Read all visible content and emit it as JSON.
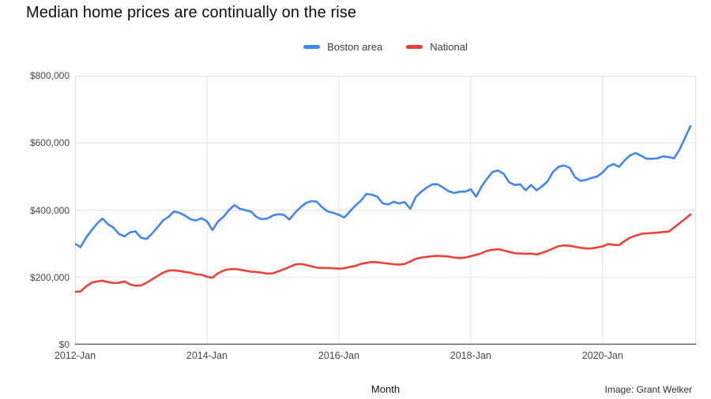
{
  "header": {
    "title": "Median home prices are continually on the rise"
  },
  "legend": {
    "items": [
      {
        "label": "Boston area",
        "color": "#4285f4"
      },
      {
        "label": "National",
        "color": "#ea4335"
      }
    ]
  },
  "footer": {
    "xaxis_title": "Month",
    "credit": "Image: Grant Welker"
  },
  "style": {
    "grid_color": "#e3e3e3",
    "axis_line_color": "#424242",
    "tick_label_color": "#474747",
    "line_width": 2.6,
    "background": "#ffffff"
  },
  "chart_data": {
    "type": "line",
    "title": "Median home prices are continually on the rise",
    "xlabel": "Month",
    "ylabel": "",
    "grid": true,
    "legend_position": "top-center",
    "ylim": [
      0,
      800000
    ],
    "y_ticks": [
      {
        "value": 0,
        "label": "$0"
      },
      {
        "value": 200000,
        "label": "$200,000"
      },
      {
        "value": 400000,
        "label": "$400,000"
      },
      {
        "value": 600000,
        "label": "$600,000"
      },
      {
        "value": 800000,
        "label": "$800,000"
      }
    ],
    "x_unit": "months since 2012-Jan (monthly data, 2012-Jan through 2021-May)",
    "x_domain_months": [
      0,
      113
    ],
    "x_ticks": [
      {
        "month_index": 0,
        "label": "2012-Jan"
      },
      {
        "month_index": 24,
        "label": "2014-Jan"
      },
      {
        "month_index": 48,
        "label": "2016-Jan"
      },
      {
        "month_index": 72,
        "label": "2018-Jan"
      },
      {
        "month_index": 96,
        "label": "2020-Jan"
      }
    ],
    "series": [
      {
        "name": "Boston area",
        "color": "#4285f4",
        "values": [
          300000,
          290000,
          318000,
          340000,
          360000,
          375000,
          358000,
          348000,
          329000,
          322000,
          334000,
          337000,
          318000,
          314000,
          330000,
          349000,
          369000,
          380000,
          396000,
          392000,
          384000,
          373000,
          369000,
          376000,
          367000,
          341000,
          366000,
          380000,
          400000,
          415000,
          404000,
          400000,
          396000,
          380000,
          373000,
          375000,
          384000,
          388000,
          386000,
          372000,
          392000,
          408000,
          421000,
          427000,
          425000,
          408000,
          396000,
          392000,
          386000,
          378000,
          396000,
          413000,
          428000,
          448000,
          446000,
          440000,
          420000,
          417000,
          425000,
          420000,
          424000,
          404000,
          439000,
          455000,
          467000,
          477000,
          477000,
          467000,
          456000,
          451000,
          455000,
          455000,
          462000,
          440000,
          471000,
          494000,
          514000,
          518000,
          508000,
          483000,
          475000,
          477000,
          459000,
          475000,
          459000,
          471000,
          486000,
          514000,
          529000,
          533000,
          526000,
          498000,
          487000,
          490000,
          496000,
          500000,
          512000,
          530000,
          537000,
          529000,
          548000,
          563000,
          570000,
          562000,
          553000,
          553000,
          554000,
          560000,
          558000,
          554000,
          580000,
          615000,
          650000
        ]
      },
      {
        "name": "National",
        "color": "#ea4335",
        "values": [
          157000,
          158000,
          173000,
          184000,
          188000,
          190000,
          186000,
          183000,
          184000,
          188000,
          179000,
          175000,
          176000,
          184000,
          194000,
          204000,
          214000,
          220000,
          221000,
          219000,
          216000,
          214000,
          209000,
          208000,
          202000,
          199000,
          212000,
          220000,
          224000,
          225000,
          223000,
          220000,
          217000,
          216000,
          214000,
          211000,
          212000,
          218000,
          224000,
          231000,
          238000,
          240000,
          237000,
          233000,
          229000,
          228000,
          228000,
          227000,
          226000,
          227000,
          231000,
          234000,
          240000,
          243000,
          246000,
          245000,
          243000,
          241000,
          239000,
          238000,
          240000,
          247000,
          255000,
          259000,
          261000,
          263000,
          264000,
          263000,
          262000,
          259000,
          257000,
          259000,
          263000,
          267000,
          272000,
          279000,
          282000,
          284000,
          280000,
          276000,
          272000,
          271000,
          270000,
          271000,
          268000,
          273000,
          279000,
          286000,
          293000,
          295000,
          294000,
          291000,
          288000,
          286000,
          286000,
          289000,
          292000,
          299000,
          297000,
          296000,
          308000,
          318000,
          324000,
          329000,
          331000,
          332000,
          333000,
          335000,
          336000,
          348000,
          361000,
          374000,
          387000
        ]
      }
    ]
  }
}
